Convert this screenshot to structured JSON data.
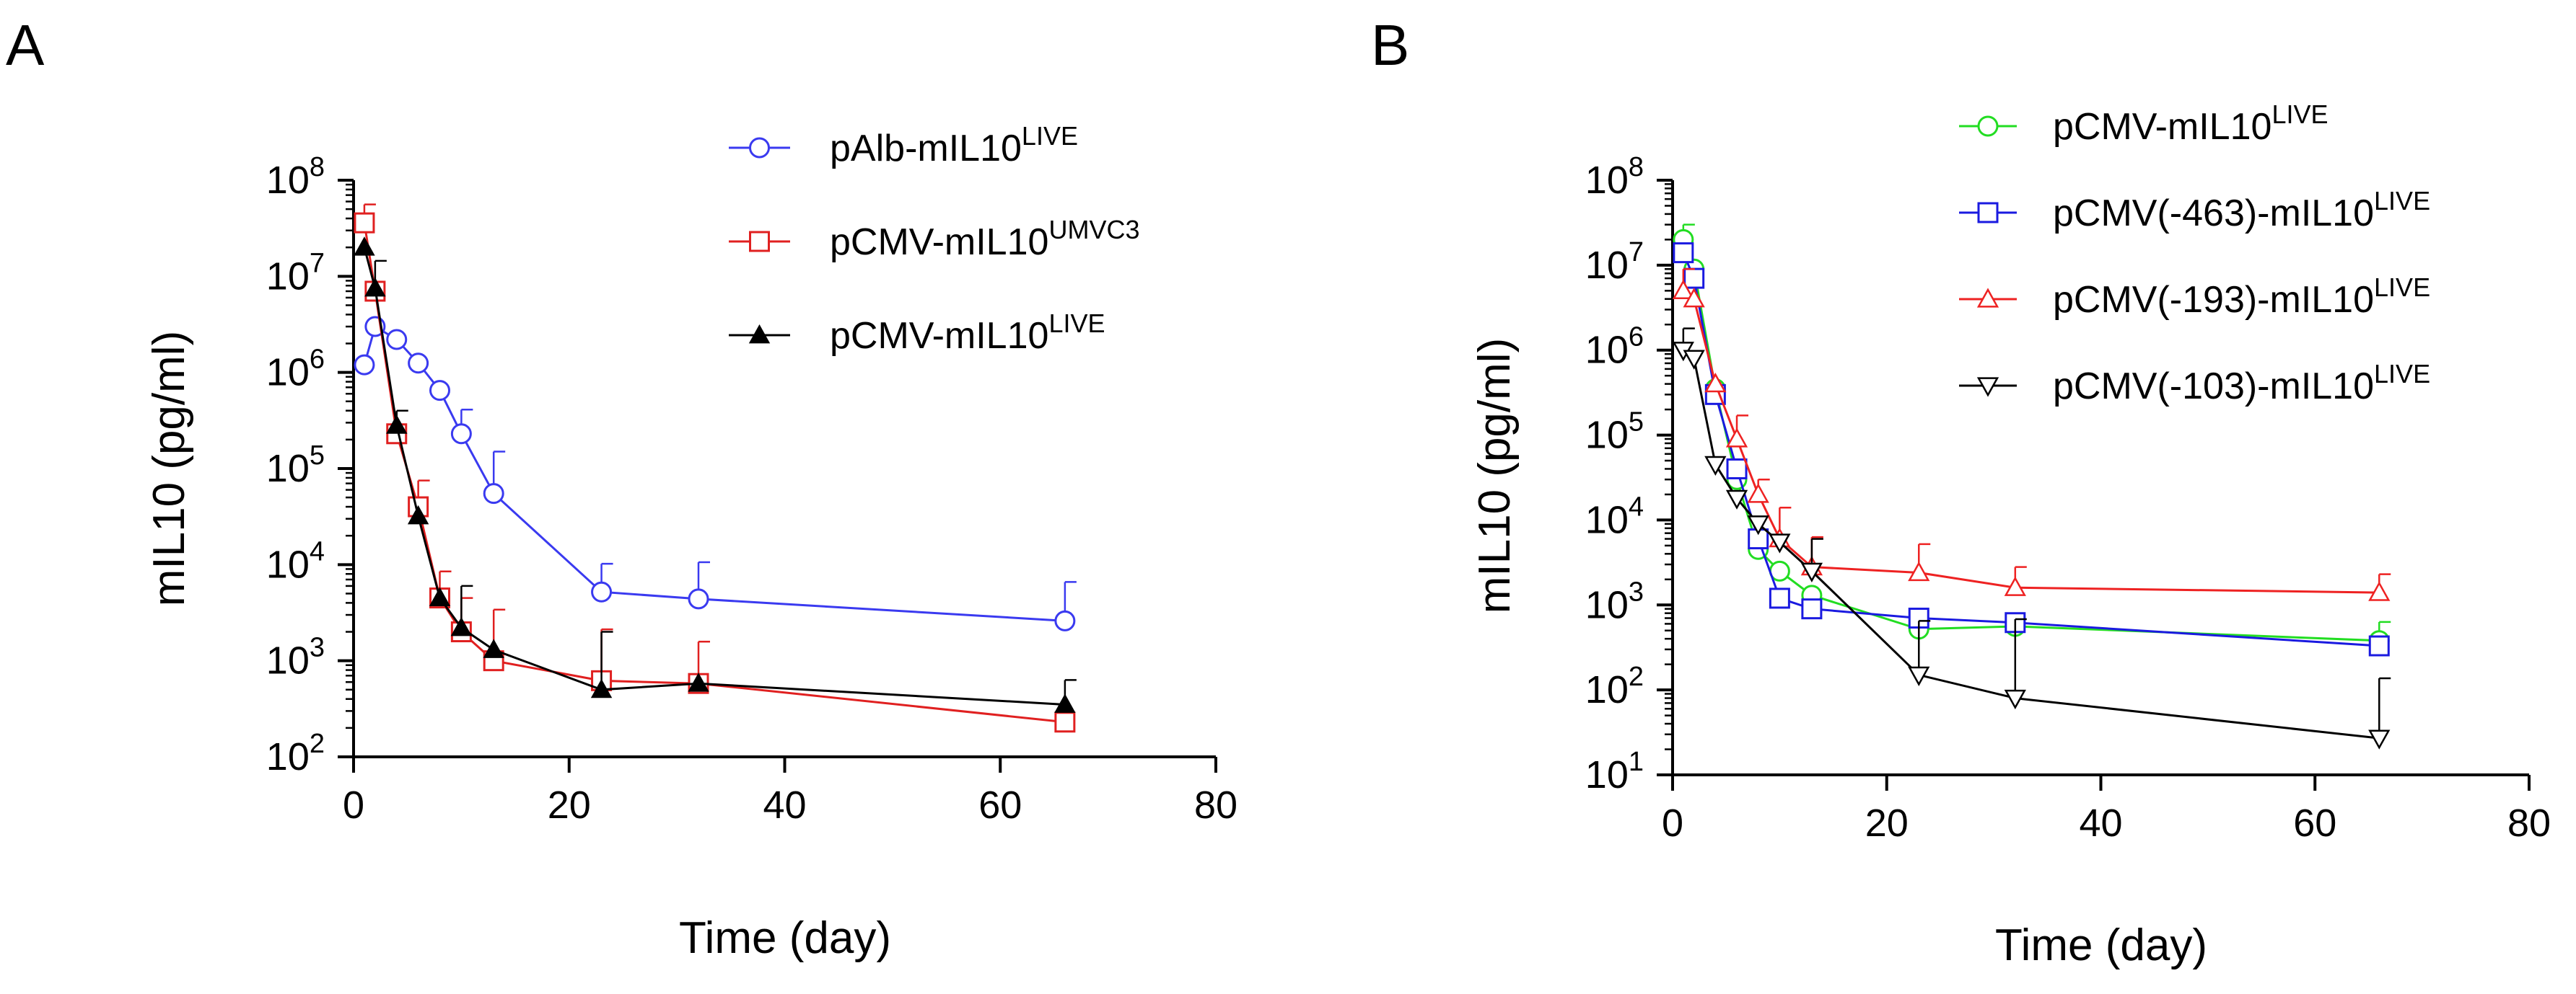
{
  "panels": [
    {
      "letter": "A"
    },
    {
      "letter": "B"
    }
  ],
  "chart_data": [
    {
      "type": "line",
      "panel": "A",
      "xlabel": "Time (day)",
      "ylabel": "mIL10 (pg/ml)",
      "xlim": [
        0,
        80
      ],
      "xticks": [
        "0",
        "20",
        "40",
        "60",
        "80"
      ],
      "ylim_log10": [
        2,
        8
      ],
      "yscale": "log",
      "yticks": [
        {
          "base": "10",
          "exp": "2"
        },
        {
          "base": "10",
          "exp": "3"
        },
        {
          "base": "10",
          "exp": "4"
        },
        {
          "base": "10",
          "exp": "5"
        },
        {
          "base": "10",
          "exp": "6"
        },
        {
          "base": "10",
          "exp": "7"
        },
        {
          "base": "10",
          "exp": "8"
        }
      ],
      "legend_position": "top-right",
      "series": [
        {
          "name": "pAlb-mIL10",
          "sup": "LIVE",
          "color": "#3a3af0",
          "marker": "circle-open",
          "x": [
            1,
            2,
            4,
            6,
            8,
            10,
            13,
            23,
            32,
            66
          ],
          "y": [
            1200000,
            3000000,
            2200000,
            1250000,
            650000,
            230000,
            55000,
            5200,
            4400,
            2600
          ],
          "err_up": [
            0,
            0,
            0,
            0,
            0,
            180000,
            95000,
            5000,
            6200,
            4000
          ]
        },
        {
          "name": "pCMV-mIL10",
          "sup": "UMVC3",
          "color": "#e02020",
          "marker": "square-open",
          "x": [
            1,
            2,
            4,
            6,
            8,
            10,
            13,
            23,
            32,
            66
          ],
          "y": [
            36000000,
            7000000,
            230000,
            40000,
            4500,
            2000,
            1000,
            620,
            580,
            230
          ],
          "err_up": [
            20000000,
            0,
            0,
            35000,
            4000,
            2500,
            2400,
            1500,
            1000,
            0
          ]
        },
        {
          "name": "pCMV-mIL10",
          "sup": "LIVE",
          "color": "#000000",
          "marker": "triangle-filled",
          "x": [
            1,
            2,
            4,
            6,
            8,
            10,
            13,
            23,
            32,
            66
          ],
          "y": [
            20000000,
            7500000,
            280000,
            32000,
            4500,
            2200,
            1300,
            500,
            580,
            350
          ],
          "err_up": [
            0,
            7000000,
            120000,
            0,
            0,
            3800,
            0,
            1500,
            0,
            280
          ]
        }
      ]
    },
    {
      "type": "line",
      "panel": "B",
      "xlabel": "Time (day)",
      "ylabel": "mIL10 (pg/ml)",
      "xlim": [
        0,
        80
      ],
      "xticks": [
        "0",
        "20",
        "40",
        "60",
        "80"
      ],
      "ylim_log10": [
        1,
        8
      ],
      "yscale": "log",
      "yticks": [
        {
          "base": "10",
          "exp": "1"
        },
        {
          "base": "10",
          "exp": "2"
        },
        {
          "base": "10",
          "exp": "3"
        },
        {
          "base": "10",
          "exp": "4"
        },
        {
          "base": "10",
          "exp": "5"
        },
        {
          "base": "10",
          "exp": "6"
        },
        {
          "base": "10",
          "exp": "7"
        },
        {
          "base": "10",
          "exp": "8"
        }
      ],
      "legend_position": "top-right",
      "series": [
        {
          "name": "pCMV-mIL10",
          "sup": "LIVE",
          "color": "#22dd22",
          "marker": "circle-open",
          "x": [
            1,
            2,
            4,
            6,
            8,
            10,
            13,
            23,
            32,
            66
          ],
          "y": [
            20000000,
            9000000,
            350000,
            30000,
            4500,
            2500,
            1300,
            520,
            560,
            380
          ],
          "err_up": [
            10000000,
            0,
            0,
            0,
            0,
            0,
            0,
            0,
            0,
            250
          ]
        },
        {
          "name": "pCMV(-463)-mIL10",
          "sup": "LIVE",
          "color": "#1a1ae0",
          "marker": "square-open",
          "x": [
            1,
            2,
            4,
            6,
            8,
            10,
            13,
            23,
            32,
            66
          ],
          "y": [
            14000000,
            7000000,
            300000,
            40000,
            6000,
            1200,
            900,
            700,
            620,
            330
          ],
          "err_up": [
            0,
            0,
            0,
            0,
            0,
            0,
            0,
            0,
            0,
            0
          ]
        },
        {
          "name": "pCMV(-193)-mIL10",
          "sup": "LIVE",
          "color": "#ee2222",
          "marker": "triangle-open",
          "x": [
            1,
            2,
            4,
            6,
            8,
            10,
            13,
            23,
            32,
            66
          ],
          "y": [
            5000000,
            4000000,
            400000,
            90000,
            20000,
            6000,
            2800,
            2400,
            1600,
            1400
          ],
          "err_up": [
            4000000,
            0,
            0,
            80000,
            10000,
            8000,
            3500,
            2800,
            1200,
            900
          ]
        },
        {
          "name": "pCMV(-103)-mIL10",
          "sup": "LIVE",
          "color": "#000000",
          "marker": "triangle-down-open",
          "x": [
            1,
            2,
            4,
            6,
            8,
            10,
            13,
            23,
            32,
            66
          ],
          "y": [
            1000000,
            800000,
            45000,
            18000,
            9000,
            5500,
            2500,
            150,
            80,
            27
          ],
          "err_up": [
            800000,
            0,
            0,
            0,
            0,
            0,
            3500,
            500,
            600,
            110
          ]
        }
      ]
    }
  ]
}
